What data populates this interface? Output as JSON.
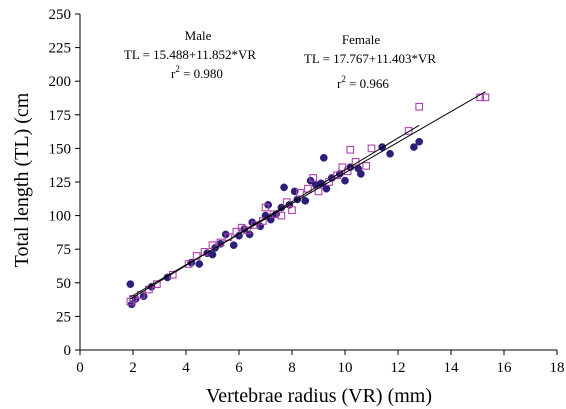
{
  "chart_data": {
    "type": "scatter",
    "xlabel": "Vertebrae radius (VR) (mm)",
    "ylabel": "Total length (TL)  (cm",
    "xlim": [
      0,
      18
    ],
    "ylim": [
      0,
      250
    ],
    "xticks": [
      0,
      2,
      4,
      6,
      8,
      10,
      12,
      14,
      16,
      18
    ],
    "yticks": [
      0,
      25,
      50,
      75,
      100,
      125,
      150,
      175,
      200,
      225,
      250
    ],
    "grid": false,
    "series": [
      {
        "name": "Male",
        "marker": "filled-circle",
        "color": "#2b1f7a",
        "points": [
          [
            1.9,
            49
          ],
          [
            1.95,
            34
          ],
          [
            2.1,
            38
          ],
          [
            2.4,
            40
          ],
          [
            2.7,
            47
          ],
          [
            3.3,
            54
          ],
          [
            4.2,
            65
          ],
          [
            4.5,
            64
          ],
          [
            4.8,
            72
          ],
          [
            5.0,
            71
          ],
          [
            5.1,
            76
          ],
          [
            5.3,
            79
          ],
          [
            5.5,
            86
          ],
          [
            5.8,
            78
          ],
          [
            6.0,
            85
          ],
          [
            6.2,
            90
          ],
          [
            6.4,
            86
          ],
          [
            6.5,
            95
          ],
          [
            6.8,
            92
          ],
          [
            7.0,
            100
          ],
          [
            7.1,
            108
          ],
          [
            7.2,
            97
          ],
          [
            7.4,
            101
          ],
          [
            7.6,
            106
          ],
          [
            7.7,
            121
          ],
          [
            7.9,
            108
          ],
          [
            8.1,
            118
          ],
          [
            8.2,
            112
          ],
          [
            8.5,
            111
          ],
          [
            8.7,
            126
          ],
          [
            8.9,
            123
          ],
          [
            9.1,
            124
          ],
          [
            9.2,
            143
          ],
          [
            9.3,
            120
          ],
          [
            9.5,
            128
          ],
          [
            9.8,
            131
          ],
          [
            10.0,
            126
          ],
          [
            10.2,
            136
          ],
          [
            10.5,
            135
          ],
          [
            10.6,
            131
          ],
          [
            11.4,
            151
          ],
          [
            11.7,
            146
          ],
          [
            12.6,
            151
          ],
          [
            12.8,
            155
          ]
        ],
        "equation": "TL = 15.488+11.852*VR",
        "r2_label": "r",
        "r2_sup": "2",
        "r2_value": " = 0.980",
        "fit": {
          "intercept": 15.488,
          "slope": 11.852,
          "x_range": [
            1.9,
            12.8
          ]
        }
      },
      {
        "name": "Female",
        "marker": "open-square",
        "color": "#b040b0",
        "points": [
          [
            1.9,
            36
          ],
          [
            2.0,
            38
          ],
          [
            2.3,
            41
          ],
          [
            2.6,
            45
          ],
          [
            2.9,
            49
          ],
          [
            3.5,
            56
          ],
          [
            4.1,
            64
          ],
          [
            4.4,
            70
          ],
          [
            4.7,
            73
          ],
          [
            5.0,
            78
          ],
          [
            5.3,
            80
          ],
          [
            5.6,
            84
          ],
          [
            5.9,
            88
          ],
          [
            6.1,
            91
          ],
          [
            6.3,
            89
          ],
          [
            6.6,
            93
          ],
          [
            6.9,
            96
          ],
          [
            7.0,
            106
          ],
          [
            7.3,
            101
          ],
          [
            7.6,
            100
          ],
          [
            7.8,
            110
          ],
          [
            8.0,
            104
          ],
          [
            8.3,
            117
          ],
          [
            8.6,
            120
          ],
          [
            8.8,
            128
          ],
          [
            9.0,
            118
          ],
          [
            9.4,
            125
          ],
          [
            9.7,
            130
          ],
          [
            9.9,
            136
          ],
          [
            10.1,
            133
          ],
          [
            10.2,
            149
          ],
          [
            10.4,
            140
          ],
          [
            10.8,
            137
          ],
          [
            11.0,
            150
          ],
          [
            12.4,
            163
          ],
          [
            12.8,
            181
          ],
          [
            15.1,
            188
          ],
          [
            15.3,
            188
          ]
        ],
        "equation": "TL = 17.767+11.403*VR",
        "r2_label": "r",
        "r2_sup": "2",
        "r2_value": " = 0.966",
        "fit": {
          "intercept": 17.767,
          "slope": 11.403,
          "x_range": [
            1.9,
            15.3
          ]
        }
      }
    ]
  }
}
